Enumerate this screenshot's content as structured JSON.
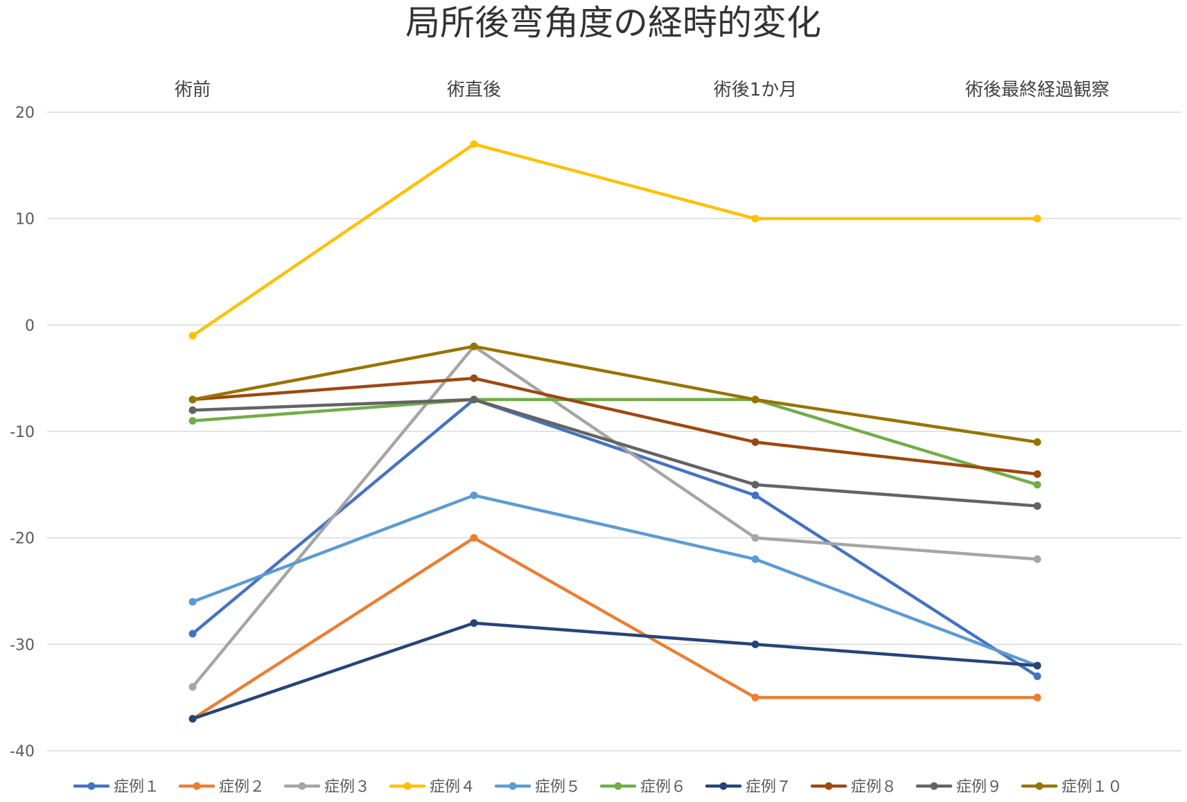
{
  "chart_data": {
    "type": "line",
    "title": "局所後弯角度の経時的変化",
    "categories": [
      "術前",
      "術直後",
      "術後1か月",
      "術後最終経過観察"
    ],
    "category_axis_position": "top",
    "ylim": [
      -40,
      20
    ],
    "yticks": [
      20,
      10,
      0,
      -10,
      -20,
      -30,
      -40
    ],
    "grid": true,
    "legend_position": "bottom",
    "series": [
      {
        "name": "症例１",
        "color": "#4472C4",
        "values": [
          -29,
          -7,
          -16,
          -33
        ]
      },
      {
        "name": "症例２",
        "color": "#ED7D31",
        "values": [
          -37,
          -20,
          -35,
          -35
        ]
      },
      {
        "name": "症例３",
        "color": "#A5A5A5",
        "values": [
          -34,
          -2,
          -20,
          -22
        ]
      },
      {
        "name": "症例４",
        "color": "#FFC000",
        "values": [
          -1,
          17,
          10,
          10
        ]
      },
      {
        "name": "症例５",
        "color": "#5B9BD5",
        "values": [
          -26,
          -16,
          -22,
          -32
        ]
      },
      {
        "name": "症例６",
        "color": "#70AD47",
        "values": [
          -9,
          -7,
          -7,
          -15
        ]
      },
      {
        "name": "症例７",
        "color": "#264478",
        "values": [
          -37,
          -28,
          -30,
          -32
        ]
      },
      {
        "name": "症例８",
        "color": "#9E480E",
        "values": [
          -7,
          -5,
          -11,
          -14
        ]
      },
      {
        "name": "症例９",
        "color": "#636363",
        "values": [
          -8,
          -7,
          -15,
          -17
        ]
      },
      {
        "name": "症例１０",
        "color": "#997300",
        "values": [
          -7,
          -2,
          -7,
          -11
        ]
      }
    ]
  }
}
